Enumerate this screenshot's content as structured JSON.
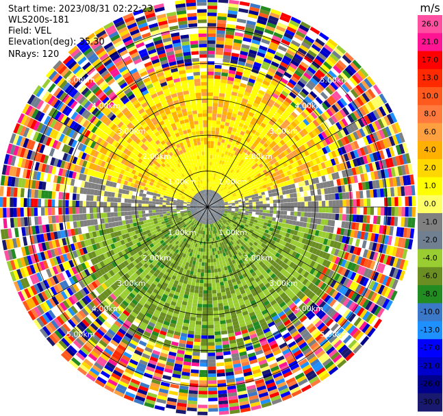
{
  "header": {
    "start_time": "Start time: 2023/08/31 02:22:23",
    "instrument": "WLS200s-181",
    "field": "Field: VEL",
    "elevation": "Elevation(deg): 35.30",
    "nrays": "NRays: 120"
  },
  "chart_data": {
    "type": "heatmap",
    "projection": "polar-ppi",
    "field": "VEL",
    "units": "m/s",
    "nrays": 120,
    "elevation_deg": 35.3,
    "range_rings_km": [
      1.0,
      2.0,
      3.0,
      4.0,
      5.0
    ],
    "ring_labels": [
      "1.00km",
      "2.00km",
      "3.00km",
      "4.00km",
      "5.00km"
    ],
    "max_range_km": 5.8,
    "azimuth_lines_deg": [
      0,
      30,
      60,
      90,
      120,
      150,
      180,
      210,
      240,
      270,
      300,
      330
    ],
    "colorbar": {
      "label": "m/s",
      "ticks": [
        "26.0",
        "21.0",
        "17.0",
        "13.0",
        "10.0",
        "8.0",
        "6.0",
        "4.0",
        "2.0",
        "1.0",
        "0.0",
        "-1.0",
        "-2.0",
        "-4.0",
        "-6.0",
        "-8.0",
        "-10.0",
        "-13.0",
        "-17.0",
        "-21.0",
        "-26.0",
        "-30.0"
      ],
      "colors": [
        "#ff4fa0",
        "#ff1493",
        "#ff0000",
        "#ff2a00",
        "#ff5a1e",
        "#ff7a3c",
        "#ffa040",
        "#ffb000",
        "#ffd700",
        "#ffff00",
        "#ffff66",
        "#808080",
        "#708090",
        "#9acd32",
        "#6b8e23",
        "#228b22",
        "#3c78c8",
        "#1e90ff",
        "#0000ff",
        "#0000cd",
        "#00008b",
        "#191970"
      ]
    },
    "near_field_pattern": "gray near zero velocity in the center and to the west/east, yellow and orange positive velocities to the north, olive and green negative velocities to the south; random noise colors beyond about 4 km",
    "grid": true
  }
}
